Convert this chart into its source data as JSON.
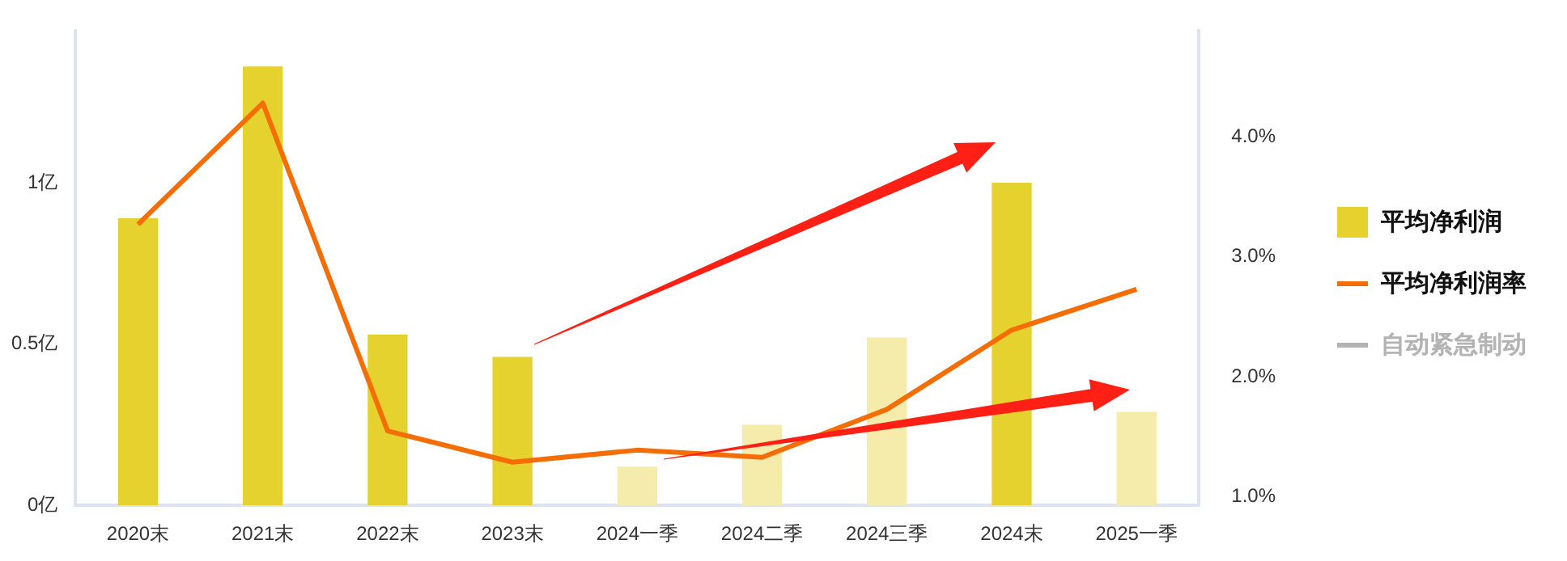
{
  "chart_data": {
    "type": "bar",
    "categories": [
      "2020末",
      "2021末",
      "2022末",
      "2023末",
      "2024一季",
      "2024二季",
      "2024三季",
      "2024末",
      "2025一季"
    ],
    "series": [
      {
        "name": "平均净利润",
        "colors": [
          "#e6d22e",
          "#e6d22e",
          "#e6d22e",
          "#e6d22e",
          "#f5ebaa",
          "#f5ebaa",
          "#f5ebaa",
          "#e6d22e",
          "#f5ebaa"
        ],
        "color": "#e6d22e",
        "values": [
          0.89,
          1.36,
          0.53,
          0.46,
          0.12,
          0.25,
          0.52,
          1.0,
          0.29
        ]
      },
      {
        "name": "平均净利润率",
        "type": "line",
        "axis": "y2",
        "color": "#f56d05",
        "values": [
          3.27,
          4.28,
          1.55,
          1.29,
          1.39,
          1.33,
          1.73,
          2.39,
          2.73
        ]
      },
      {
        "name": "自动紧急制动",
        "type": "line",
        "axis": "y2",
        "color": "#b3b3b3",
        "values": [
          null,
          null,
          null,
          null,
          null,
          null,
          null,
          null,
          null
        ]
      }
    ],
    "ylim": [
      0,
      1.47
    ],
    "yticks": [
      {
        "value": 0,
        "label": "0亿"
      },
      {
        "value": 0.5,
        "label": "0.5亿"
      },
      {
        "value": 1,
        "label": "1亿"
      }
    ],
    "y2lim": [
      0.93,
      4.88
    ],
    "y2ticks": [
      {
        "value": 1,
        "label": "1.0%"
      },
      {
        "value": 2,
        "label": "2.0%"
      },
      {
        "value": 3,
        "label": "3.0%"
      },
      {
        "value": 4,
        "label": "4.0%"
      }
    ],
    "grid": false,
    "legend": "right",
    "marker": "none",
    "line_style": "solid"
  }
}
